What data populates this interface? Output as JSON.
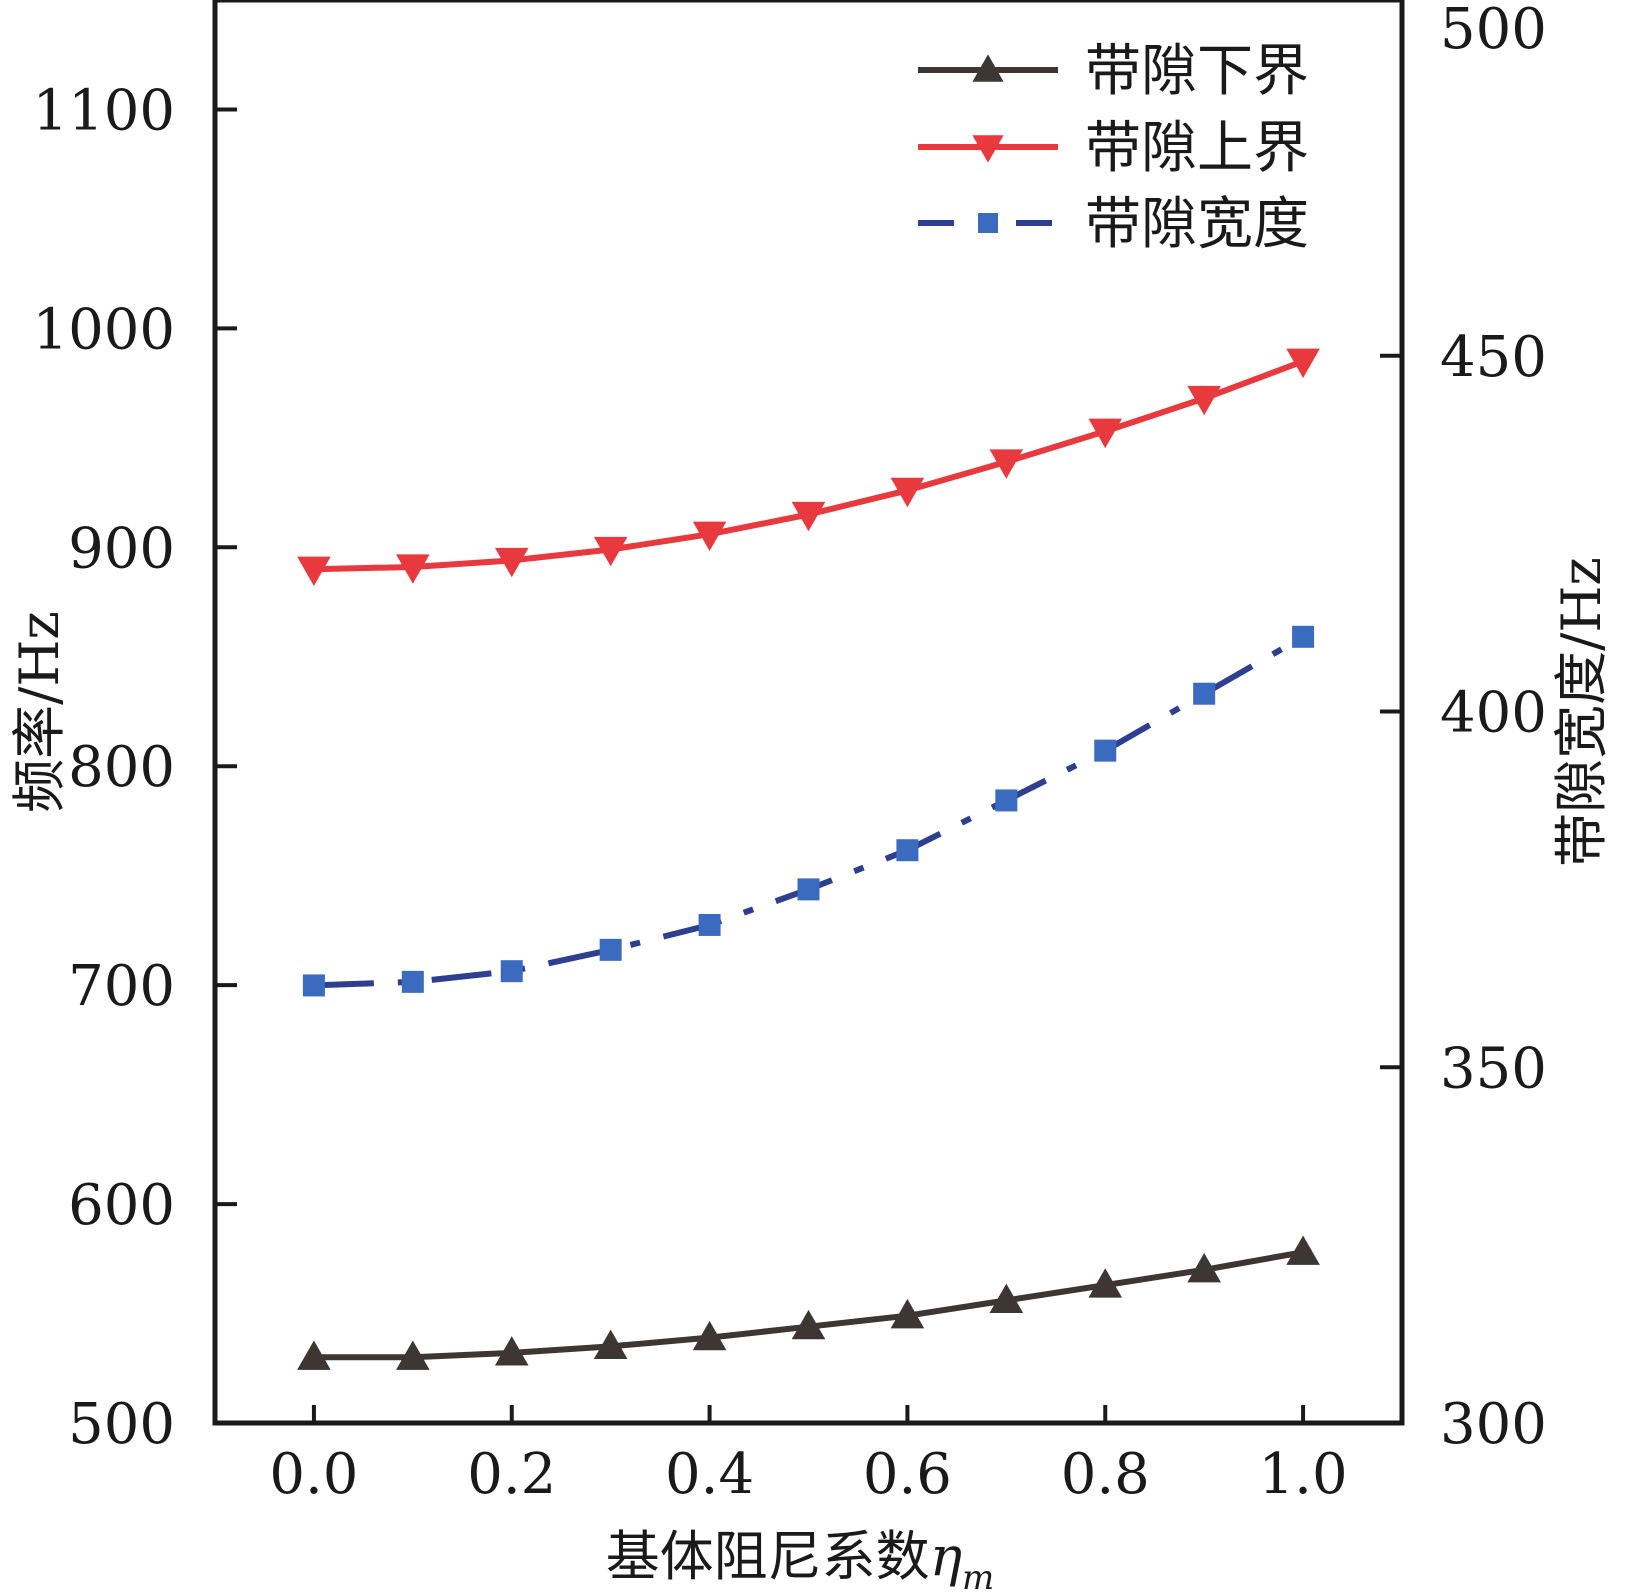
{
  "chart_data": {
    "type": "line",
    "x": [
      0.0,
      0.1,
      0.2,
      0.3,
      0.4,
      0.5,
      0.6,
      0.7,
      0.8,
      0.9,
      1.0
    ],
    "x_tick_labels": [
      "0.0",
      "0.2",
      "0.4",
      "0.6",
      "0.8",
      "1.0"
    ],
    "x_ticks": [
      0.0,
      0.2,
      0.4,
      0.6,
      0.8,
      1.0
    ],
    "xlim": [
      -0.1,
      1.1
    ],
    "xlabel_main": "基体阻尼系数",
    "xlabel_symbol": "η",
    "xlabel_sub": "m",
    "ylabel_left": "频率/Hz",
    "ylim_left": [
      500,
      1150
    ],
    "y_left_ticks": [
      500,
      600,
      700,
      800,
      900,
      1000,
      1100
    ],
    "ylabel_right": "带隙宽度/Hz",
    "ylim_right": [
      300,
      500
    ],
    "y_right_ticks": [
      300,
      350,
      400,
      450,
      500
    ],
    "series": [
      {
        "name": "带隙下界",
        "axis": "left",
        "color": "#3d3632",
        "marker": "triangle-up",
        "dash": "solid",
        "values": [
          530,
          530,
          532,
          535,
          539,
          544,
          549,
          556,
          563,
          570,
          578
        ]
      },
      {
        "name": "带隙上界",
        "axis": "left",
        "color": "#e8393f",
        "marker": "triangle-down",
        "dash": "solid",
        "values": [
          890,
          891,
          894,
          899,
          906,
          915,
          926,
          939,
          953,
          968,
          985
        ]
      },
      {
        "name": "带隙宽度",
        "axis": "right",
        "color": "#2e3f8f",
        "marker_color": "#3a6bbf",
        "marker": "square",
        "dash": "dash-dot",
        "values": [
          361.5,
          362,
          363.5,
          366.5,
          370,
          375,
          380.5,
          387.5,
          394.5,
          402.5,
          410.5
        ]
      }
    ],
    "legend_position": "top-right",
    "grid": false
  }
}
